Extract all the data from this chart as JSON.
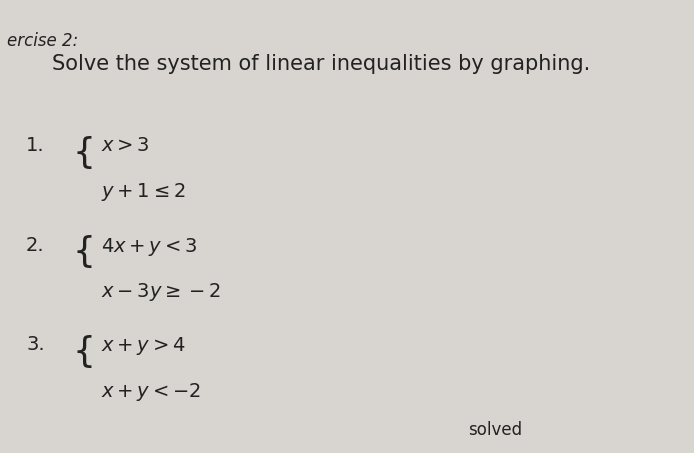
{
  "background_color": "#d8d5d0",
  "paper_color": "#e8e6e1",
  "title_text": "Solve the system of linear inequalities by graphing.",
  "exercise_label": "ercise 2:",
  "title_fontsize": 15,
  "exercise_fontsize": 12,
  "items": [
    {
      "number": "1.",
      "line1": "$x > 3$",
      "line2": "$y + 1 \\leq 2$"
    },
    {
      "number": "2.",
      "line1": "$4x + y < 3$",
      "line2": "$x - 3y \\geq -2$"
    },
    {
      "number": "3.",
      "line1": "$x + y > 4$",
      "line2": "$x + y < -2$"
    }
  ],
  "bottom_text": "solved",
  "item_fontsize": 14,
  "number_fontsize": 14,
  "left_brace_color": "#222222",
  "text_color": "#222222"
}
